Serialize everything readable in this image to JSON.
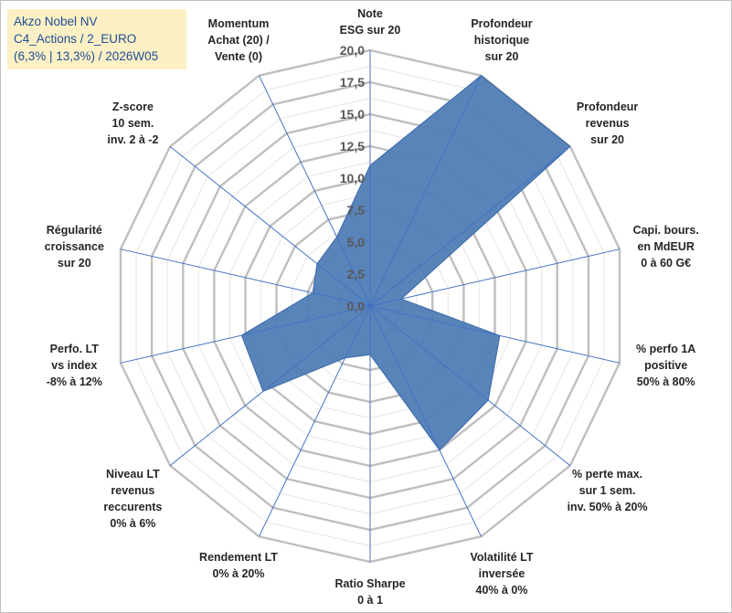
{
  "title_box": {
    "line1": "Akzo Nobel NV",
    "line2": "C4_Actions / 2_EURO",
    "line3": "(6,3% | 13,3%) / 2026W05"
  },
  "chart_data": {
    "type": "radar",
    "title": "Akzo Nobel NV",
    "rmin": 0,
    "rmax": 20,
    "ticks": [
      {
        "value": 0,
        "label": "0,0"
      },
      {
        "value": 2.5,
        "label": "2,5"
      },
      {
        "value": 5,
        "label": "5,0"
      },
      {
        "value": 7.5,
        "label": "7,5"
      },
      {
        "value": 10,
        "label": "10,0"
      },
      {
        "value": 12.5,
        "label": "12,5"
      },
      {
        "value": 15,
        "label": "15,0"
      },
      {
        "value": 17.5,
        "label": "17,5"
      },
      {
        "value": 20,
        "label": "20,0"
      }
    ],
    "grid_ring_colors": [
      "#e9e9e9",
      "#bfbfbf"
    ],
    "spoke_color": "#4472c4",
    "series": [
      {
        "name": "Akzo Nobel NV",
        "fill": "#4f7db5",
        "stroke": "#3a67a8",
        "values": [
          11,
          20,
          20,
          2.5,
          10.4,
          11.8,
          12.5,
          3.8,
          4.5,
          10.7,
          10.3,
          4.6,
          5.3,
          6
        ]
      }
    ],
    "categories": [
      {
        "lines": [
          "Note",
          "ESG sur 20"
        ]
      },
      {
        "lines": [
          "Profondeur",
          "historique",
          "sur 20"
        ]
      },
      {
        "lines": [
          "Profondeur",
          "revenus",
          "sur 20"
        ]
      },
      {
        "lines": [
          "Capi. bours.",
          "en MdEUR",
          "0 à 60 G€"
        ]
      },
      {
        "lines": [
          "% perfo 1A",
          "positive",
          "50% à 80%"
        ]
      },
      {
        "lines": [
          "% perte max.",
          "sur 1 sem.",
          "inv. 50% à 20%"
        ]
      },
      {
        "lines": [
          "Volatilité LT",
          "inversée",
          "40% à 0%"
        ]
      },
      {
        "lines": [
          "Ratio Sharpe",
          "0 à 1"
        ]
      },
      {
        "lines": [
          "Rendement LT",
          "0% à 20%"
        ]
      },
      {
        "lines": [
          "Niveau LT",
          "revenus",
          "reccurents",
          "0% à 6%"
        ]
      },
      {
        "lines": [
          "Perfo. LT",
          "vs index",
          "-8% à 12%"
        ]
      },
      {
        "lines": [
          "Régularité",
          "croissance",
          "sur 20"
        ]
      },
      {
        "lines": [
          "Z-score",
          "10 sem.",
          "inv. 2 à -2"
        ]
      },
      {
        "lines": [
          "Momentum",
          "Achat (20) /",
          "Vente (0)"
        ]
      }
    ]
  }
}
